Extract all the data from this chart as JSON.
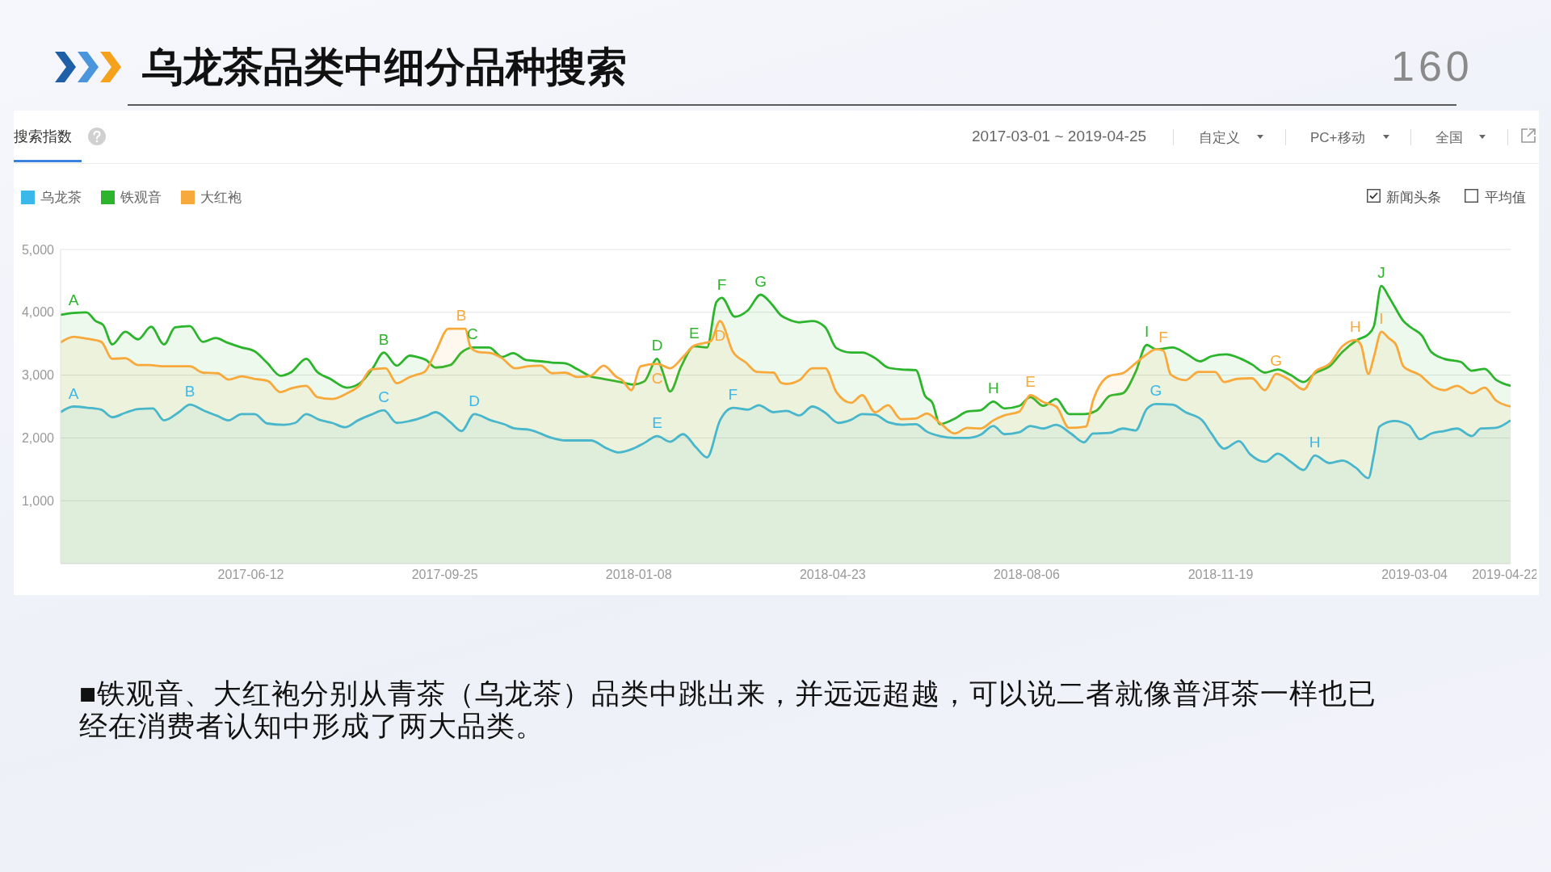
{
  "chart_data": {
    "type": "area",
    "title": "乌龙茶品类中细分品种搜索",
    "xlim": [
      "2017-03-01",
      "2019-04-25"
    ],
    "xticks": [
      "2017-06-12",
      "2017-09-25",
      "2018-01-08",
      "2018-04-23",
      "2018-08-06",
      "2018-11-19",
      "2019-03-04",
      "2019-04-22"
    ],
    "ylim": [
      0,
      5000
    ],
    "yticks": [
      {
        "value": 1000,
        "label": "1,000"
      },
      {
        "value": 2000,
        "label": "2,000"
      },
      {
        "value": 3000,
        "label": "3,000"
      },
      {
        "value": 4000,
        "label": "4,000"
      },
      {
        "value": 5000,
        "label": "5,000"
      }
    ],
    "grid": "y",
    "legend": "top left",
    "series": [
      {
        "name": "乌龙茶",
        "color": "#3bb8ea",
        "x": [
          "2017-03-01",
          "2017-03-08",
          "2017-03-16",
          "2017-03-23",
          "2017-03-29",
          "2017-04-05",
          "2017-04-12",
          "2017-04-20",
          "2017-04-26",
          "2017-05-04",
          "2017-05-10",
          "2017-05-18",
          "2017-05-25",
          "2017-05-31",
          "2017-06-07",
          "2017-06-14",
          "2017-06-21",
          "2017-06-30",
          "2017-07-06",
          "2017-07-12",
          "2017-07-19",
          "2017-07-26",
          "2017-08-02",
          "2017-08-09",
          "2017-08-16",
          "2017-08-23",
          "2017-08-30",
          "2017-09-06",
          "2017-09-10",
          "2017-09-15",
          "2017-09-20",
          "2017-09-28",
          "2017-10-04",
          "2017-10-11",
          "2017-10-20",
          "2017-10-27",
          "2017-11-02",
          "2017-11-10",
          "2017-11-22",
          "2017-11-29",
          "2017-12-13",
          "2017-12-22",
          "2017-12-28",
          "2018-01-05",
          "2018-01-11",
          "2018-01-18",
          "2018-01-25",
          "2018-02-01",
          "2018-02-08",
          "2018-02-14",
          "2018-02-21",
          "2018-02-28",
          "2018-03-08",
          "2018-03-14",
          "2018-03-22",
          "2018-03-29",
          "2018-04-05",
          "2018-04-12",
          "2018-04-19",
          "2018-04-26",
          "2018-05-03",
          "2018-05-09",
          "2018-05-16",
          "2018-05-23",
          "2018-05-31",
          "2018-06-07",
          "2018-06-13",
          "2018-06-20",
          "2018-06-28",
          "2018-07-05",
          "2018-07-12",
          "2018-07-19",
          "2018-07-25",
          "2018-08-02",
          "2018-08-08",
          "2018-08-15",
          "2018-08-22",
          "2018-08-30",
          "2018-09-06",
          "2018-09-11",
          "2018-09-20",
          "2018-09-27",
          "2018-10-04",
          "2018-10-10",
          "2018-10-15",
          "2018-10-24",
          "2018-10-31",
          "2018-11-09",
          "2018-11-14",
          "2018-11-21",
          "2018-11-29",
          "2018-12-05",
          "2018-12-13",
          "2018-12-20",
          "2018-12-27",
          "2019-01-03",
          "2019-01-09",
          "2019-01-17",
          "2019-01-24",
          "2019-01-31",
          "2019-02-07",
          "2019-02-10",
          "2019-02-13",
          "2019-02-21",
          "2019-03-01",
          "2019-03-07",
          "2019-03-13",
          "2019-03-20",
          "2019-03-27",
          "2019-04-04",
          "2019-04-09",
          "2019-04-17",
          "2019-04-25"
        ],
        "values": [
          2410,
          2500,
          2480,
          2450,
          2330,
          2400,
          2460,
          2470,
          2280,
          2410,
          2530,
          2430,
          2350,
          2280,
          2380,
          2380,
          2230,
          2210,
          2240,
          2380,
          2290,
          2240,
          2170,
          2280,
          2370,
          2440,
          2240,
          2270,
          2300,
          2350,
          2410,
          2250,
          2110,
          2380,
          2280,
          2220,
          2150,
          2130,
          2000,
          1960,
          1960,
          1830,
          1770,
          1830,
          1920,
          2030,
          1940,
          2060,
          1850,
          1690,
          2280,
          2480,
          2450,
          2520,
          2410,
          2430,
          2360,
          2500,
          2400,
          2240,
          2290,
          2380,
          2370,
          2250,
          2210,
          2220,
          2100,
          2030,
          2000,
          2000,
          2050,
          2190,
          2060,
          2090,
          2190,
          2150,
          2210,
          2070,
          1930,
          2070,
          2080,
          2150,
          2120,
          2460,
          2540,
          2530,
          2410,
          2280,
          2070,
          1830,
          1950,
          1740,
          1620,
          1750,
          1620,
          1490,
          1720,
          1600,
          1640,
          1530,
          1360,
          1730,
          2180,
          2270,
          2200,
          1980,
          2070,
          2110,
          2150,
          2030,
          2150,
          2160,
          2280
        ]
      },
      {
        "name": "铁观音",
        "color": "#2cb52c",
        "x": [
          "2017-03-01",
          "2017-03-08",
          "2017-03-15",
          "2017-03-20",
          "2017-03-24",
          "2017-03-29",
          "2017-04-05",
          "2017-04-12",
          "2017-04-19",
          "2017-04-26",
          "2017-05-02",
          "2017-05-10",
          "2017-05-17",
          "2017-05-24",
          "2017-05-30",
          "2017-06-07",
          "2017-06-14",
          "2017-06-21",
          "2017-06-28",
          "2017-07-04",
          "2017-07-12",
          "2017-07-18",
          "2017-07-25",
          "2017-08-03",
          "2017-08-10",
          "2017-08-17",
          "2017-08-23",
          "2017-08-30",
          "2017-09-06",
          "2017-09-10",
          "2017-09-15",
          "2017-09-20",
          "2017-09-28",
          "2017-10-04",
          "2017-10-10",
          "2017-10-19",
          "2017-10-26",
          "2017-11-01",
          "2017-11-08",
          "2017-11-16",
          "2017-11-22",
          "2017-11-29",
          "2017-12-06",
          "2017-12-13",
          "2017-12-20",
          "2017-12-29",
          "2018-01-05",
          "2018-01-11",
          "2018-01-18",
          "2018-01-21",
          "2018-01-25",
          "2018-01-31",
          "2018-02-07",
          "2018-02-14",
          "2018-02-19",
          "2018-02-22",
          "2018-03-01",
          "2018-03-08",
          "2018-03-15",
          "2018-03-21",
          "2018-03-26",
          "2018-03-29",
          "2018-04-05",
          "2018-04-12",
          "2018-04-19",
          "2018-04-25",
          "2018-05-03",
          "2018-05-09",
          "2018-05-16",
          "2018-05-23",
          "2018-05-30",
          "2018-06-07",
          "2018-06-12",
          "2018-06-16",
          "2018-06-20",
          "2018-06-27",
          "2018-07-05",
          "2018-07-12",
          "2018-07-19",
          "2018-07-25",
          "2018-08-02",
          "2018-08-08",
          "2018-08-15",
          "2018-08-22",
          "2018-08-29",
          "2018-09-06",
          "2018-09-13",
          "2018-09-20",
          "2018-09-27",
          "2018-10-04",
          "2018-10-10",
          "2018-10-15",
          "2018-10-24",
          "2018-11-01",
          "2018-11-08",
          "2018-11-14",
          "2018-11-22",
          "2018-11-30",
          "2018-12-06",
          "2018-12-13",
          "2018-12-20",
          "2018-12-27",
          "2019-01-03",
          "2019-01-09",
          "2019-01-17",
          "2019-01-24",
          "2019-02-01",
          "2019-02-07",
          "2019-02-10",
          "2019-02-14",
          "2019-02-18",
          "2019-02-21",
          "2019-02-26",
          "2019-03-02",
          "2019-03-08",
          "2019-03-13",
          "2019-03-20",
          "2019-03-29",
          "2019-04-04",
          "2019-04-11",
          "2019-04-17",
          "2019-04-25"
        ],
        "values": [
          3960,
          3990,
          4000,
          3860,
          3800,
          3490,
          3690,
          3570,
          3770,
          3490,
          3760,
          3780,
          3530,
          3590,
          3520,
          3440,
          3380,
          3190,
          2990,
          3050,
          3260,
          3050,
          2940,
          2800,
          2870,
          3110,
          3360,
          3150,
          3310,
          3290,
          3240,
          3120,
          3160,
          3360,
          3440,
          3440,
          3290,
          3350,
          3240,
          3220,
          3200,
          3190,
          3090,
          2980,
          2940,
          2890,
          2850,
          2900,
          3260,
          3050,
          2740,
          3140,
          3460,
          3440,
          4160,
          4230,
          3930,
          4030,
          4280,
          4130,
          3950,
          3900,
          3840,
          3860,
          3760,
          3430,
          3360,
          3360,
          3270,
          3120,
          3090,
          3080,
          2670,
          2560,
          2220,
          2290,
          2420,
          2440,
          2580,
          2470,
          2510,
          2650,
          2510,
          2620,
          2380,
          2380,
          2440,
          2670,
          2710,
          3050,
          3480,
          3410,
          3440,
          3330,
          3220,
          3300,
          3330,
          3260,
          3170,
          3040,
          3090,
          3000,
          2890,
          3030,
          3140,
          3370,
          3560,
          3650,
          3780,
          4420,
          4250,
          4100,
          3860,
          3760,
          3630,
          3370,
          3260,
          3210,
          3070,
          3100,
          2930,
          2830
        ]
      },
      {
        "name": "大红袍",
        "color": "#f8a93b",
        "x": [
          "2017-03-01",
          "2017-03-08",
          "2017-03-15",
          "2017-03-23",
          "2017-03-29",
          "2017-04-05",
          "2017-04-12",
          "2017-04-18",
          "2017-04-25",
          "2017-05-10",
          "2017-05-17",
          "2017-05-25",
          "2017-05-31",
          "2017-06-07",
          "2017-06-14",
          "2017-06-21",
          "2017-06-28",
          "2017-07-04",
          "2017-07-12",
          "2017-07-18",
          "2017-07-26",
          "2017-08-03",
          "2017-08-10",
          "2017-08-16",
          "2017-08-24",
          "2017-08-30",
          "2017-09-06",
          "2017-09-10",
          "2017-09-14",
          "2017-09-20",
          "2017-09-27",
          "2017-10-06",
          "2017-10-09",
          "2017-10-13",
          "2017-10-20",
          "2017-10-26",
          "2017-11-02",
          "2017-11-09",
          "2017-11-16",
          "2017-11-22",
          "2017-11-29",
          "2017-12-06",
          "2017-12-13",
          "2017-12-20",
          "2017-12-27",
          "2017-12-30",
          "2018-01-04",
          "2018-01-09",
          "2018-01-18",
          "2018-01-25",
          "2018-02-01",
          "2018-02-07",
          "2018-02-16",
          "2018-02-21",
          "2018-02-28",
          "2018-03-07",
          "2018-03-13",
          "2018-03-22",
          "2018-03-26",
          "2018-03-29",
          "2018-04-05",
          "2018-04-12",
          "2018-04-19",
          "2018-04-25",
          "2018-05-03",
          "2018-05-09",
          "2018-05-16",
          "2018-05-23",
          "2018-05-30",
          "2018-06-07",
          "2018-06-13",
          "2018-06-20",
          "2018-06-28",
          "2018-07-05",
          "2018-07-12",
          "2018-07-19",
          "2018-07-25",
          "2018-08-02",
          "2018-08-08",
          "2018-08-15",
          "2018-08-22",
          "2018-08-29",
          "2018-09-07",
          "2018-09-11",
          "2018-09-20",
          "2018-09-27",
          "2018-10-04",
          "2018-10-10",
          "2018-10-15",
          "2018-10-19",
          "2018-10-23",
          "2018-10-31",
          "2018-11-07",
          "2018-11-16",
          "2018-11-21",
          "2018-11-28",
          "2018-12-06",
          "2018-12-13",
          "2018-12-19",
          "2018-12-26",
          "2019-01-03",
          "2019-01-09",
          "2019-01-17",
          "2019-01-24",
          "2019-01-31",
          "2019-02-03",
          "2019-02-07",
          "2019-02-10",
          "2019-02-14",
          "2019-02-18",
          "2019-02-22",
          "2019-02-26",
          "2019-03-07",
          "2019-03-14",
          "2019-03-20",
          "2019-03-27",
          "2019-04-04",
          "2019-04-11",
          "2019-04-17",
          "2019-04-25"
        ],
        "values": [
          3520,
          3610,
          3580,
          3530,
          3260,
          3270,
          3160,
          3160,
          3140,
          3140,
          3040,
          3030,
          2930,
          2980,
          2940,
          2910,
          2730,
          2790,
          2830,
          2650,
          2620,
          2710,
          2840,
          3090,
          3110,
          2870,
          2970,
          3010,
          3050,
          3370,
          3740,
          3740,
          3440,
          3370,
          3350,
          3270,
          3110,
          3140,
          3150,
          3030,
          3040,
          2970,
          2990,
          3150,
          2970,
          2920,
          2760,
          3140,
          3180,
          3110,
          3290,
          3470,
          3540,
          3860,
          3370,
          3200,
          3050,
          3040,
          2880,
          2860,
          2920,
          3110,
          3110,
          2730,
          2560,
          2680,
          2410,
          2520,
          2300,
          2310,
          2390,
          2240,
          2070,
          2160,
          2150,
          2280,
          2360,
          2420,
          2680,
          2570,
          2500,
          2160,
          2180,
          2600,
          2990,
          3030,
          3190,
          3330,
          3410,
          3390,
          3010,
          2920,
          3050,
          3050,
          2890,
          2940,
          2950,
          2760,
          3020,
          2930,
          2770,
          3050,
          3180,
          3460,
          3560,
          3480,
          3020,
          3290,
          3690,
          3590,
          3480,
          3140,
          3000,
          2820,
          2760,
          2830,
          2710,
          2800,
          2600,
          2500
        ]
      }
    ],
    "annotations": [
      "160",
      "搜索指数",
      "2017-03-01 ~ 2019-04-25",
      "自定义",
      "PC+移动",
      "全国",
      "新闻头条",
      "平均值",
      "■铁观音、大红袍分别从青茶（乌龙茶）品类中跳出来，并远远超越，可以说二者就像普洱茶一样也已经在消费者认知中形成了两大品类。",
      {
        "text": "A",
        "x": "2017-03-08",
        "y": 3990
      },
      {
        "text": "B",
        "x": "2017-08-23",
        "y": 3360
      },
      {
        "text": "C",
        "x": "2017-10-10",
        "y": 3440
      },
      {
        "text": "D",
        "x": "2018-01-18",
        "y": 3260
      },
      {
        "text": "E",
        "x": "2018-02-07",
        "y": 3460
      },
      {
        "text": "F",
        "x": "2018-02-22",
        "y": 4230
      },
      {
        "text": "G",
        "x": "2018-03-15",
        "y": 4280
      },
      {
        "text": "H",
        "x": "2018-07-19",
        "y": 2580
      },
      {
        "text": "I",
        "x": "2018-10-10",
        "y": 3480
      },
      {
        "text": "J",
        "x": "2019-02-14",
        "y": 4420
      },
      {
        "text": "B",
        "x": "2017-10-04",
        "y": 3740
      },
      {
        "text": "C",
        "x": "2018-01-18",
        "y": 3180
      },
      {
        "text": "D",
        "x": "2018-02-21",
        "y": 3860
      },
      {
        "text": "E",
        "x": "2018-08-08",
        "y": 2680
      },
      {
        "text": "F",
        "x": "2018-10-19",
        "y": 3390
      },
      {
        "text": "G",
        "x": "2018-12-19",
        "y": 3020
      },
      {
        "text": "H",
        "x": "2019-01-31",
        "y": 3560
      },
      {
        "text": "I",
        "x": "2019-02-14",
        "y": 3690
      },
      {
        "text": "A",
        "x": "2017-03-08",
        "y": 2500
      },
      {
        "text": "B",
        "x": "2017-05-10",
        "y": 2530
      },
      {
        "text": "C",
        "x": "2017-08-23",
        "y": 2440
      },
      {
        "text": "D",
        "x": "2017-10-11",
        "y": 2380
      },
      {
        "text": "E",
        "x": "2018-01-18",
        "y": 2030
      },
      {
        "text": "F",
        "x": "2018-02-28",
        "y": 2480
      },
      {
        "text": "G",
        "x": "2018-10-15",
        "y": 2540
      },
      {
        "text": "H",
        "x": "2019-01-09",
        "y": 1720
      }
    ]
  }
}
